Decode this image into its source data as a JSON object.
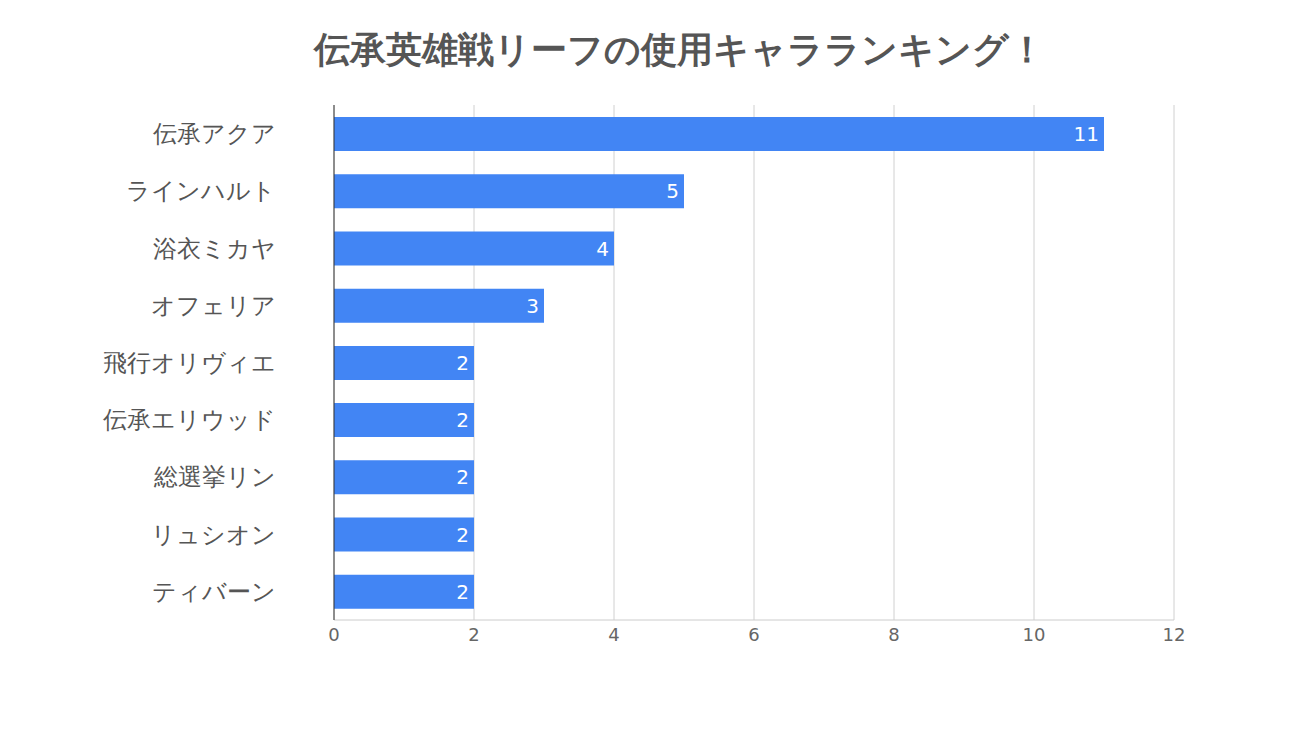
{
  "chart_data": {
    "type": "bar",
    "title": "伝承英雄戦リーフの使用キャラランキング！",
    "orientation": "horizontal",
    "categories": [
      "伝承アクア",
      "ラインハルト",
      "浴衣ミカヤ",
      "オフェリア",
      "飛行オリヴィエ",
      "伝承エリウッド",
      "総選挙リン",
      "リュシオン",
      "ティバーン"
    ],
    "values": [
      11,
      5,
      4,
      3,
      2,
      2,
      2,
      2,
      2
    ],
    "color": "#4285f4",
    "xlim": [
      0,
      12
    ],
    "xticks": [
      0,
      2,
      4,
      6,
      8,
      10,
      12
    ],
    "grid": true,
    "data_labels": true
  }
}
